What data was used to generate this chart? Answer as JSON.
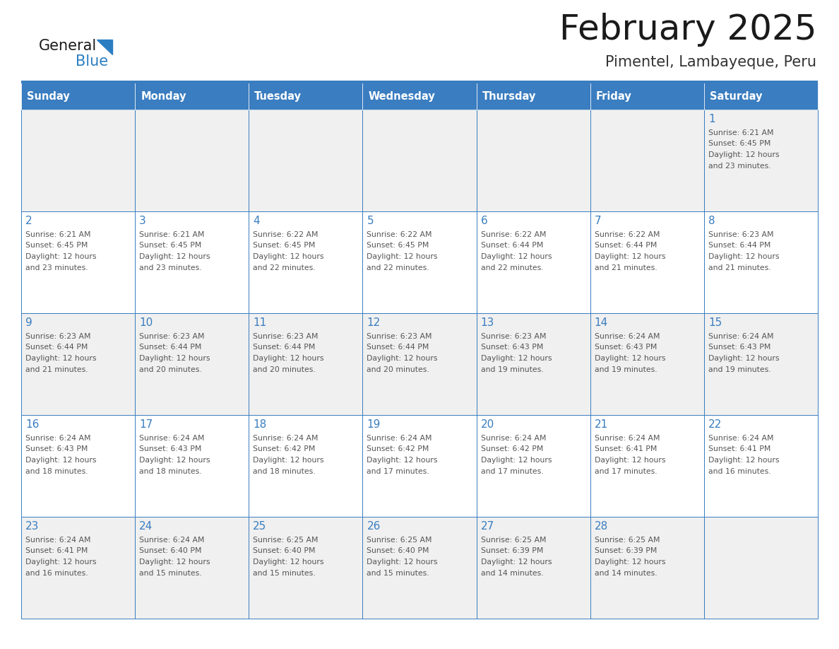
{
  "title": "February 2025",
  "subtitle": "Pimentel, Lambayeque, Peru",
  "days_of_week": [
    "Sunday",
    "Monday",
    "Tuesday",
    "Wednesday",
    "Thursday",
    "Friday",
    "Saturday"
  ],
  "header_bg": "#3A7DC0",
  "header_text": "#FFFFFF",
  "cell_bg_light": "#F0F0F0",
  "cell_bg_white": "#FFFFFF",
  "cell_border_color": "#3A7DC0",
  "day_num_color": "#3A7DC0",
  "cell_text_color": "#555555",
  "title_color": "#1a1a1a",
  "subtitle_color": "#333333",
  "logo_general_color": "#1a1a1a",
  "logo_blue_color": "#2B7EC1",
  "fig_width": 11.88,
  "fig_height": 9.18,
  "dpi": 100,
  "weeks": [
    [
      {
        "day": null,
        "sunrise": null,
        "sunset": null,
        "daylight": null
      },
      {
        "day": null,
        "sunrise": null,
        "sunset": null,
        "daylight": null
      },
      {
        "day": null,
        "sunrise": null,
        "sunset": null,
        "daylight": null
      },
      {
        "day": null,
        "sunrise": null,
        "sunset": null,
        "daylight": null
      },
      {
        "day": null,
        "sunrise": null,
        "sunset": null,
        "daylight": null
      },
      {
        "day": null,
        "sunrise": null,
        "sunset": null,
        "daylight": null
      },
      {
        "day": 1,
        "sunrise": "6:21 AM",
        "sunset": "6:45 PM",
        "daylight": "12 hours\nand 23 minutes."
      }
    ],
    [
      {
        "day": 2,
        "sunrise": "6:21 AM",
        "sunset": "6:45 PM",
        "daylight": "12 hours\nand 23 minutes."
      },
      {
        "day": 3,
        "sunrise": "6:21 AM",
        "sunset": "6:45 PM",
        "daylight": "12 hours\nand 23 minutes."
      },
      {
        "day": 4,
        "sunrise": "6:22 AM",
        "sunset": "6:45 PM",
        "daylight": "12 hours\nand 22 minutes."
      },
      {
        "day": 5,
        "sunrise": "6:22 AM",
        "sunset": "6:45 PM",
        "daylight": "12 hours\nand 22 minutes."
      },
      {
        "day": 6,
        "sunrise": "6:22 AM",
        "sunset": "6:44 PM",
        "daylight": "12 hours\nand 22 minutes."
      },
      {
        "day": 7,
        "sunrise": "6:22 AM",
        "sunset": "6:44 PM",
        "daylight": "12 hours\nand 21 minutes."
      },
      {
        "day": 8,
        "sunrise": "6:23 AM",
        "sunset": "6:44 PM",
        "daylight": "12 hours\nand 21 minutes."
      }
    ],
    [
      {
        "day": 9,
        "sunrise": "6:23 AM",
        "sunset": "6:44 PM",
        "daylight": "12 hours\nand 21 minutes."
      },
      {
        "day": 10,
        "sunrise": "6:23 AM",
        "sunset": "6:44 PM",
        "daylight": "12 hours\nand 20 minutes."
      },
      {
        "day": 11,
        "sunrise": "6:23 AM",
        "sunset": "6:44 PM",
        "daylight": "12 hours\nand 20 minutes."
      },
      {
        "day": 12,
        "sunrise": "6:23 AM",
        "sunset": "6:44 PM",
        "daylight": "12 hours\nand 20 minutes."
      },
      {
        "day": 13,
        "sunrise": "6:23 AM",
        "sunset": "6:43 PM",
        "daylight": "12 hours\nand 19 minutes."
      },
      {
        "day": 14,
        "sunrise": "6:24 AM",
        "sunset": "6:43 PM",
        "daylight": "12 hours\nand 19 minutes."
      },
      {
        "day": 15,
        "sunrise": "6:24 AM",
        "sunset": "6:43 PM",
        "daylight": "12 hours\nand 19 minutes."
      }
    ],
    [
      {
        "day": 16,
        "sunrise": "6:24 AM",
        "sunset": "6:43 PM",
        "daylight": "12 hours\nand 18 minutes."
      },
      {
        "day": 17,
        "sunrise": "6:24 AM",
        "sunset": "6:43 PM",
        "daylight": "12 hours\nand 18 minutes."
      },
      {
        "day": 18,
        "sunrise": "6:24 AM",
        "sunset": "6:42 PM",
        "daylight": "12 hours\nand 18 minutes."
      },
      {
        "day": 19,
        "sunrise": "6:24 AM",
        "sunset": "6:42 PM",
        "daylight": "12 hours\nand 17 minutes."
      },
      {
        "day": 20,
        "sunrise": "6:24 AM",
        "sunset": "6:42 PM",
        "daylight": "12 hours\nand 17 minutes."
      },
      {
        "day": 21,
        "sunrise": "6:24 AM",
        "sunset": "6:41 PM",
        "daylight": "12 hours\nand 17 minutes."
      },
      {
        "day": 22,
        "sunrise": "6:24 AM",
        "sunset": "6:41 PM",
        "daylight": "12 hours\nand 16 minutes."
      }
    ],
    [
      {
        "day": 23,
        "sunrise": "6:24 AM",
        "sunset": "6:41 PM",
        "daylight": "12 hours\nand 16 minutes."
      },
      {
        "day": 24,
        "sunrise": "6:24 AM",
        "sunset": "6:40 PM",
        "daylight": "12 hours\nand 15 minutes."
      },
      {
        "day": 25,
        "sunrise": "6:25 AM",
        "sunset": "6:40 PM",
        "daylight": "12 hours\nand 15 minutes."
      },
      {
        "day": 26,
        "sunrise": "6:25 AM",
        "sunset": "6:40 PM",
        "daylight": "12 hours\nand 15 minutes."
      },
      {
        "day": 27,
        "sunrise": "6:25 AM",
        "sunset": "6:39 PM",
        "daylight": "12 hours\nand 14 minutes."
      },
      {
        "day": 28,
        "sunrise": "6:25 AM",
        "sunset": "6:39 PM",
        "daylight": "12 hours\nand 14 minutes."
      },
      {
        "day": null,
        "sunrise": null,
        "sunset": null,
        "daylight": null
      }
    ]
  ]
}
